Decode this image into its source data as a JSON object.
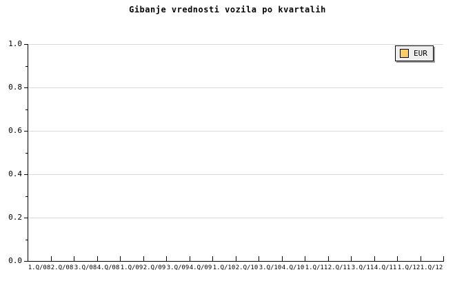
{
  "colors": {
    "background": "#ffffff",
    "axis": "#000000",
    "grid": "#d9d9d9",
    "text": "#000000",
    "legend_background": "#efefef",
    "legend_border": "#000000",
    "legend_shadow": "#999999",
    "eur_swatch": "#facc6e"
  },
  "chart_data": {
    "type": "line",
    "title": "Gibanje vrednosti vozila po kvartalih",
    "xlabel": "",
    "ylabel": "",
    "categories": [
      "1.Q/08",
      "2.Q/08",
      "3.Q/08",
      "4.Q/08",
      "1.Q/09",
      "2.Q/09",
      "3.Q/09",
      "4.Q/09",
      "1.Q/10",
      "2.Q/10",
      "3.Q/10",
      "4.Q/10",
      "1.Q/11",
      "2.Q/11",
      "3.Q/11",
      "4.Q/11",
      "1.Q/12",
      "1.Q/12"
    ],
    "series": [
      {
        "name": "EUR",
        "color": "#facc6e",
        "values": []
      }
    ],
    "ylim": [
      0.0,
      1.0
    ],
    "y_tick_values": [
      0.0,
      0.2,
      0.4,
      0.6,
      0.8,
      1.0
    ],
    "y_tick_labels": [
      "0.0",
      "0.2",
      "0.4",
      "0.6",
      "0.8",
      "1.0"
    ],
    "y_minor_step": 0.1,
    "grid": true,
    "legend_position": "top-right",
    "legend_entries": [
      {
        "label": "EUR",
        "color": "#facc6e"
      }
    ]
  }
}
